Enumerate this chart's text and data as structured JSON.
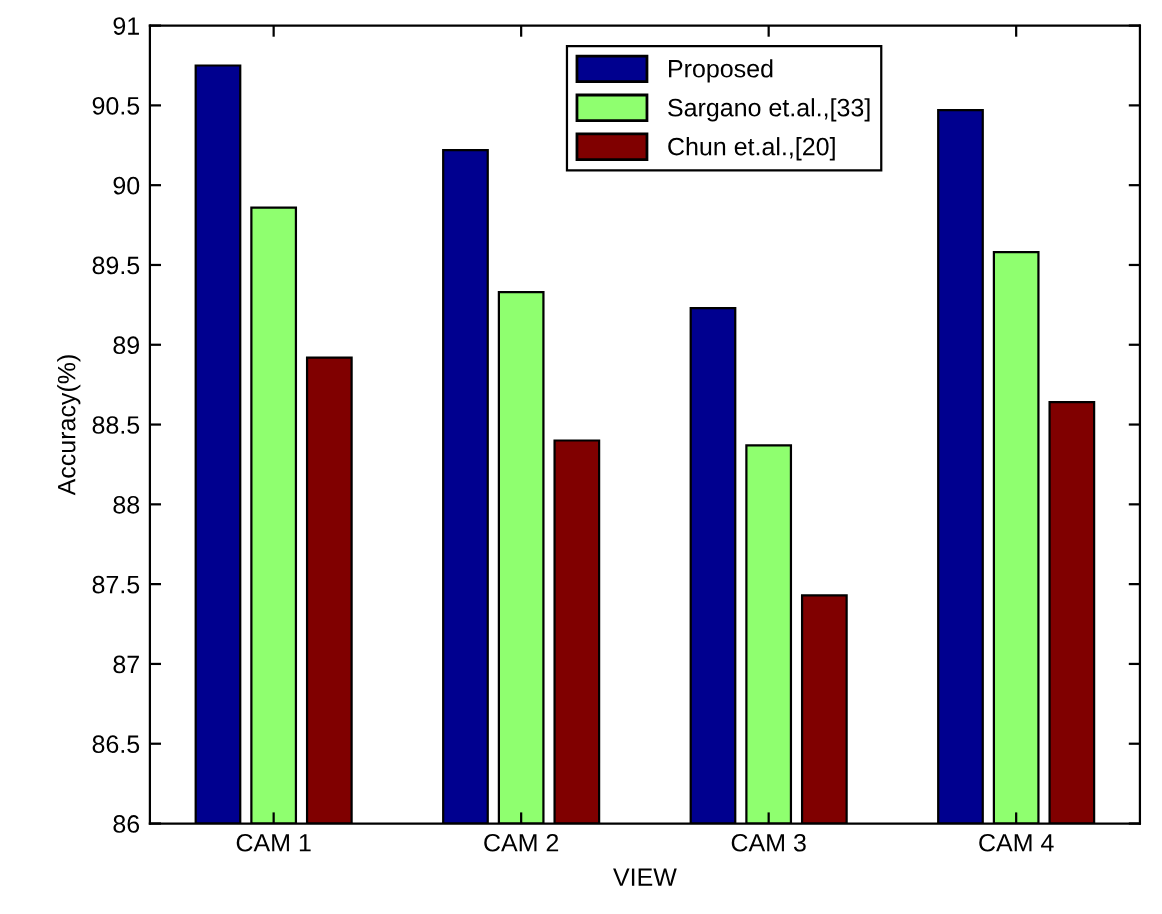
{
  "chart_data": {
    "type": "bar",
    "xlabel": "VIEW",
    "ylabel": "Accuracy(%)",
    "categories": [
      "CAM 1",
      "CAM 2",
      "CAM 3",
      "CAM 4"
    ],
    "series": [
      {
        "name": "Proposed",
        "color": "#00008f",
        "values": [
          90.75,
          90.22,
          89.23,
          90.47
        ]
      },
      {
        "name": "Sargano et.al.,[33]",
        "color": "#8fff6f",
        "values": [
          89.86,
          89.33,
          88.37,
          89.58
        ]
      },
      {
        "name": "Chun et.al.,[20]",
        "color": "#800000",
        "values": [
          88.92,
          88.4,
          87.43,
          88.64
        ]
      }
    ],
    "ylim": [
      86,
      91
    ],
    "yticks": [
      86,
      86.5,
      87,
      87.5,
      88,
      88.5,
      89,
      89.5,
      90,
      90.5,
      91
    ],
    "grid": false,
    "legend": "top"
  }
}
